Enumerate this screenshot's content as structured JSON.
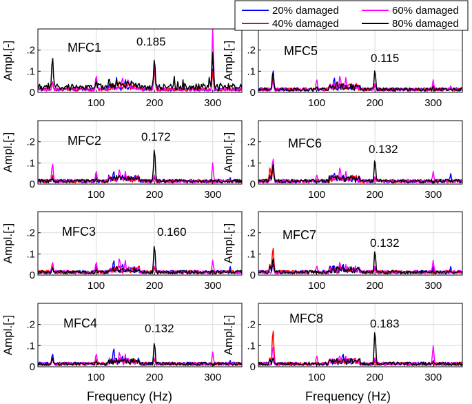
{
  "chart_data": {
    "type": "line",
    "legend": {
      "placement": "top-right",
      "entries": [
        {
          "label": "20% damaged",
          "color": "#0000ff"
        },
        {
          "label": "60% damaged",
          "color": "#ff00ff"
        },
        {
          "label": "40% damaged",
          "color": "#ff0000"
        },
        {
          "label": "80% damaged",
          "color": "#000000"
        }
      ]
    },
    "xlabel": "Frequency (Hz)",
    "ylabel": "Ampl.[-]",
    "xlim": [
      0,
      350
    ],
    "ylim": [
      0,
      0.3
    ],
    "xticks": [
      100,
      200,
      300
    ],
    "yticks": [
      0,
      0.1,
      0.2
    ],
    "grid": true,
    "panels": [
      {
        "name": "MFC1",
        "peak_label": "0.185",
        "peaks": {
          "20% damaged": [
            [
              25,
              0.06
            ],
            [
              100,
              0.07
            ],
            [
              135,
              0.07
            ],
            [
              150,
              0.06
            ],
            [
              200,
              0.14
            ],
            [
              300,
              0.11
            ]
          ],
          "40% damaged": [
            [
              25,
              0.05
            ],
            [
              100,
              0.06
            ],
            [
              140,
              0.06
            ],
            [
              200,
              0.12
            ],
            [
              300,
              0.1
            ]
          ],
          "60% damaged": [
            [
              25,
              0.06
            ],
            [
              100,
              0.09
            ],
            [
              145,
              0.08
            ],
            [
              155,
              0.07
            ],
            [
              200,
              0.16
            ],
            [
              300,
              0.3
            ]
          ],
          "80% damaged": [
            [
              25,
              0.19
            ],
            [
              100,
              0.06
            ],
            [
              135,
              0.06
            ],
            [
              200,
              0.18
            ],
            [
              300,
              0.19
            ]
          ]
        }
      },
      {
        "name": "MFC5",
        "peak_label": "0.115",
        "peaks": {
          "20% damaged": [
            [
              25,
              0.12
            ],
            [
              100,
              0.03
            ],
            [
              130,
              0.08
            ],
            [
              145,
              0.05
            ],
            [
              200,
              0.04
            ],
            [
              300,
              0.03
            ],
            [
              330,
              0.03
            ]
          ],
          "40% damaged": [
            [
              25,
              0.08
            ],
            [
              100,
              0.03
            ],
            [
              140,
              0.05
            ],
            [
              200,
              0.04
            ]
          ],
          "60% damaged": [
            [
              25,
              0.06
            ],
            [
              100,
              0.07
            ],
            [
              140,
              0.09
            ],
            [
              150,
              0.07
            ],
            [
              200,
              0.05
            ],
            [
              300,
              0.06
            ],
            [
              330,
              0.03
            ]
          ],
          "80% damaged": [
            [
              25,
              0.11
            ],
            [
              100,
              0.03
            ],
            [
              135,
              0.05
            ],
            [
              200,
              0.12
            ],
            [
              300,
              0.03
            ]
          ]
        }
      },
      {
        "name": "MFC2",
        "peak_label": "0.172",
        "peaks": {
          "20% damaged": [
            [
              25,
              0.04
            ],
            [
              100,
              0.05
            ],
            [
              130,
              0.07
            ],
            [
              145,
              0.05
            ],
            [
              200,
              0.04
            ],
            [
              330,
              0.03
            ]
          ],
          "40% damaged": [
            [
              25,
              0.05
            ],
            [
              100,
              0.04
            ],
            [
              140,
              0.04
            ],
            [
              200,
              0.03
            ]
          ],
          "60% damaged": [
            [
              25,
              0.11
            ],
            [
              100,
              0.07
            ],
            [
              140,
              0.08
            ],
            [
              150,
              0.06
            ],
            [
              200,
              0.05
            ],
            [
              300,
              0.1
            ]
          ],
          "80% damaged": [
            [
              25,
              0.03
            ],
            [
              100,
              0.03
            ],
            [
              135,
              0.04
            ],
            [
              145,
              0.04
            ],
            [
              200,
              0.19
            ]
          ]
        }
      },
      {
        "name": "MFC6",
        "peak_label": "0.132",
        "peaks": {
          "20% damaged": [
            [
              20,
              0.05
            ],
            [
              25,
              0.1
            ],
            [
              130,
              0.06
            ],
            [
              145,
              0.05
            ],
            [
              200,
              0.04
            ],
            [
              330,
              0.05
            ]
          ],
          "40% damaged": [
            [
              20,
              0.09
            ],
            [
              25,
              0.08
            ],
            [
              140,
              0.04
            ],
            [
              200,
              0.03
            ]
          ],
          "60% damaged": [
            [
              25,
              0.14
            ],
            [
              100,
              0.05
            ],
            [
              140,
              0.09
            ],
            [
              150,
              0.06
            ],
            [
              200,
              0.04
            ],
            [
              300,
              0.06
            ]
          ],
          "80% damaged": [
            [
              20,
              0.04
            ],
            [
              25,
              0.11
            ],
            [
              135,
              0.04
            ],
            [
              145,
              0.04
            ],
            [
              200,
              0.13
            ]
          ]
        }
      },
      {
        "name": "MFC3",
        "peak_label": "0.160",
        "peaks": {
          "20% damaged": [
            [
              25,
              0.05
            ],
            [
              100,
              0.05
            ],
            [
              130,
              0.08
            ],
            [
              145,
              0.06
            ],
            [
              200,
              0.04
            ],
            [
              330,
              0.04
            ]
          ],
          "40% damaged": [
            [
              25,
              0.05
            ],
            [
              100,
              0.04
            ],
            [
              140,
              0.05
            ],
            [
              200,
              0.04
            ]
          ],
          "60% damaged": [
            [
              25,
              0.07
            ],
            [
              100,
              0.07
            ],
            [
              140,
              0.09
            ],
            [
              150,
              0.07
            ],
            [
              200,
              0.05
            ],
            [
              300,
              0.07
            ]
          ],
          "80% damaged": [
            [
              25,
              0.04
            ],
            [
              100,
              0.03
            ],
            [
              135,
              0.04
            ],
            [
              145,
              0.04
            ],
            [
              200,
              0.16
            ]
          ]
        }
      },
      {
        "name": "MFC7",
        "peak_label": "0.132",
        "peaks": {
          "20% damaged": [
            [
              20,
              0.05
            ],
            [
              25,
              0.06
            ],
            [
              130,
              0.05
            ],
            [
              145,
              0.06
            ],
            [
              200,
              0.04
            ],
            [
              300,
              0.04
            ],
            [
              330,
              0.04
            ]
          ],
          "40% damaged": [
            [
              20,
              0.06
            ],
            [
              25,
              0.15
            ],
            [
              140,
              0.05
            ],
            [
              200,
              0.03
            ]
          ],
          "60% damaged": [
            [
              25,
              0.08
            ],
            [
              100,
              0.05
            ],
            [
              140,
              0.07
            ],
            [
              150,
              0.05
            ],
            [
              200,
              0.05
            ],
            [
              300,
              0.07
            ]
          ],
          "80% damaged": [
            [
              20,
              0.05
            ],
            [
              25,
              0.09
            ],
            [
              135,
              0.04
            ],
            [
              145,
              0.04
            ],
            [
              200,
              0.13
            ]
          ]
        }
      },
      {
        "name": "MFC4",
        "peak_label": "0.132",
        "peaks": {
          "20% damaged": [
            [
              25,
              0.07
            ],
            [
              100,
              0.04
            ],
            [
              130,
              0.1
            ],
            [
              145,
              0.06
            ],
            [
              200,
              0.04
            ],
            [
              330,
              0.03
            ]
          ],
          "40% damaged": [
            [
              25,
              0.05
            ],
            [
              100,
              0.04
            ],
            [
              140,
              0.05
            ],
            [
              200,
              0.04
            ]
          ],
          "60% damaged": [
            [
              25,
              0.04
            ],
            [
              100,
              0.07
            ],
            [
              140,
              0.08
            ],
            [
              150,
              0.06
            ],
            [
              200,
              0.05
            ],
            [
              300,
              0.07
            ]
          ],
          "80% damaged": [
            [
              25,
              0.05
            ],
            [
              100,
              0.03
            ],
            [
              135,
              0.04
            ],
            [
              145,
              0.04
            ],
            [
              200,
              0.13
            ]
          ]
        }
      },
      {
        "name": "MFC8",
        "peak_label": "0.183",
        "peaks": {
          "20% damaged": [
            [
              20,
              0.04
            ],
            [
              25,
              0.05
            ],
            [
              130,
              0.04
            ],
            [
              145,
              0.07
            ],
            [
              200,
              0.04
            ],
            [
              300,
              0.03
            ]
          ],
          "40% damaged": [
            [
              20,
              0.05
            ],
            [
              25,
              0.2
            ],
            [
              140,
              0.04
            ],
            [
              200,
              0.03
            ]
          ],
          "60% damaged": [
            [
              25,
              0.11
            ],
            [
              100,
              0.06
            ],
            [
              140,
              0.06
            ],
            [
              150,
              0.05
            ],
            [
              200,
              0.05
            ],
            [
              300,
              0.1
            ]
          ],
          "80% damaged": [
            [
              20,
              0.04
            ],
            [
              25,
              0.05
            ],
            [
              135,
              0.04
            ],
            [
              145,
              0.04
            ],
            [
              200,
              0.19
            ]
          ]
        }
      }
    ]
  }
}
